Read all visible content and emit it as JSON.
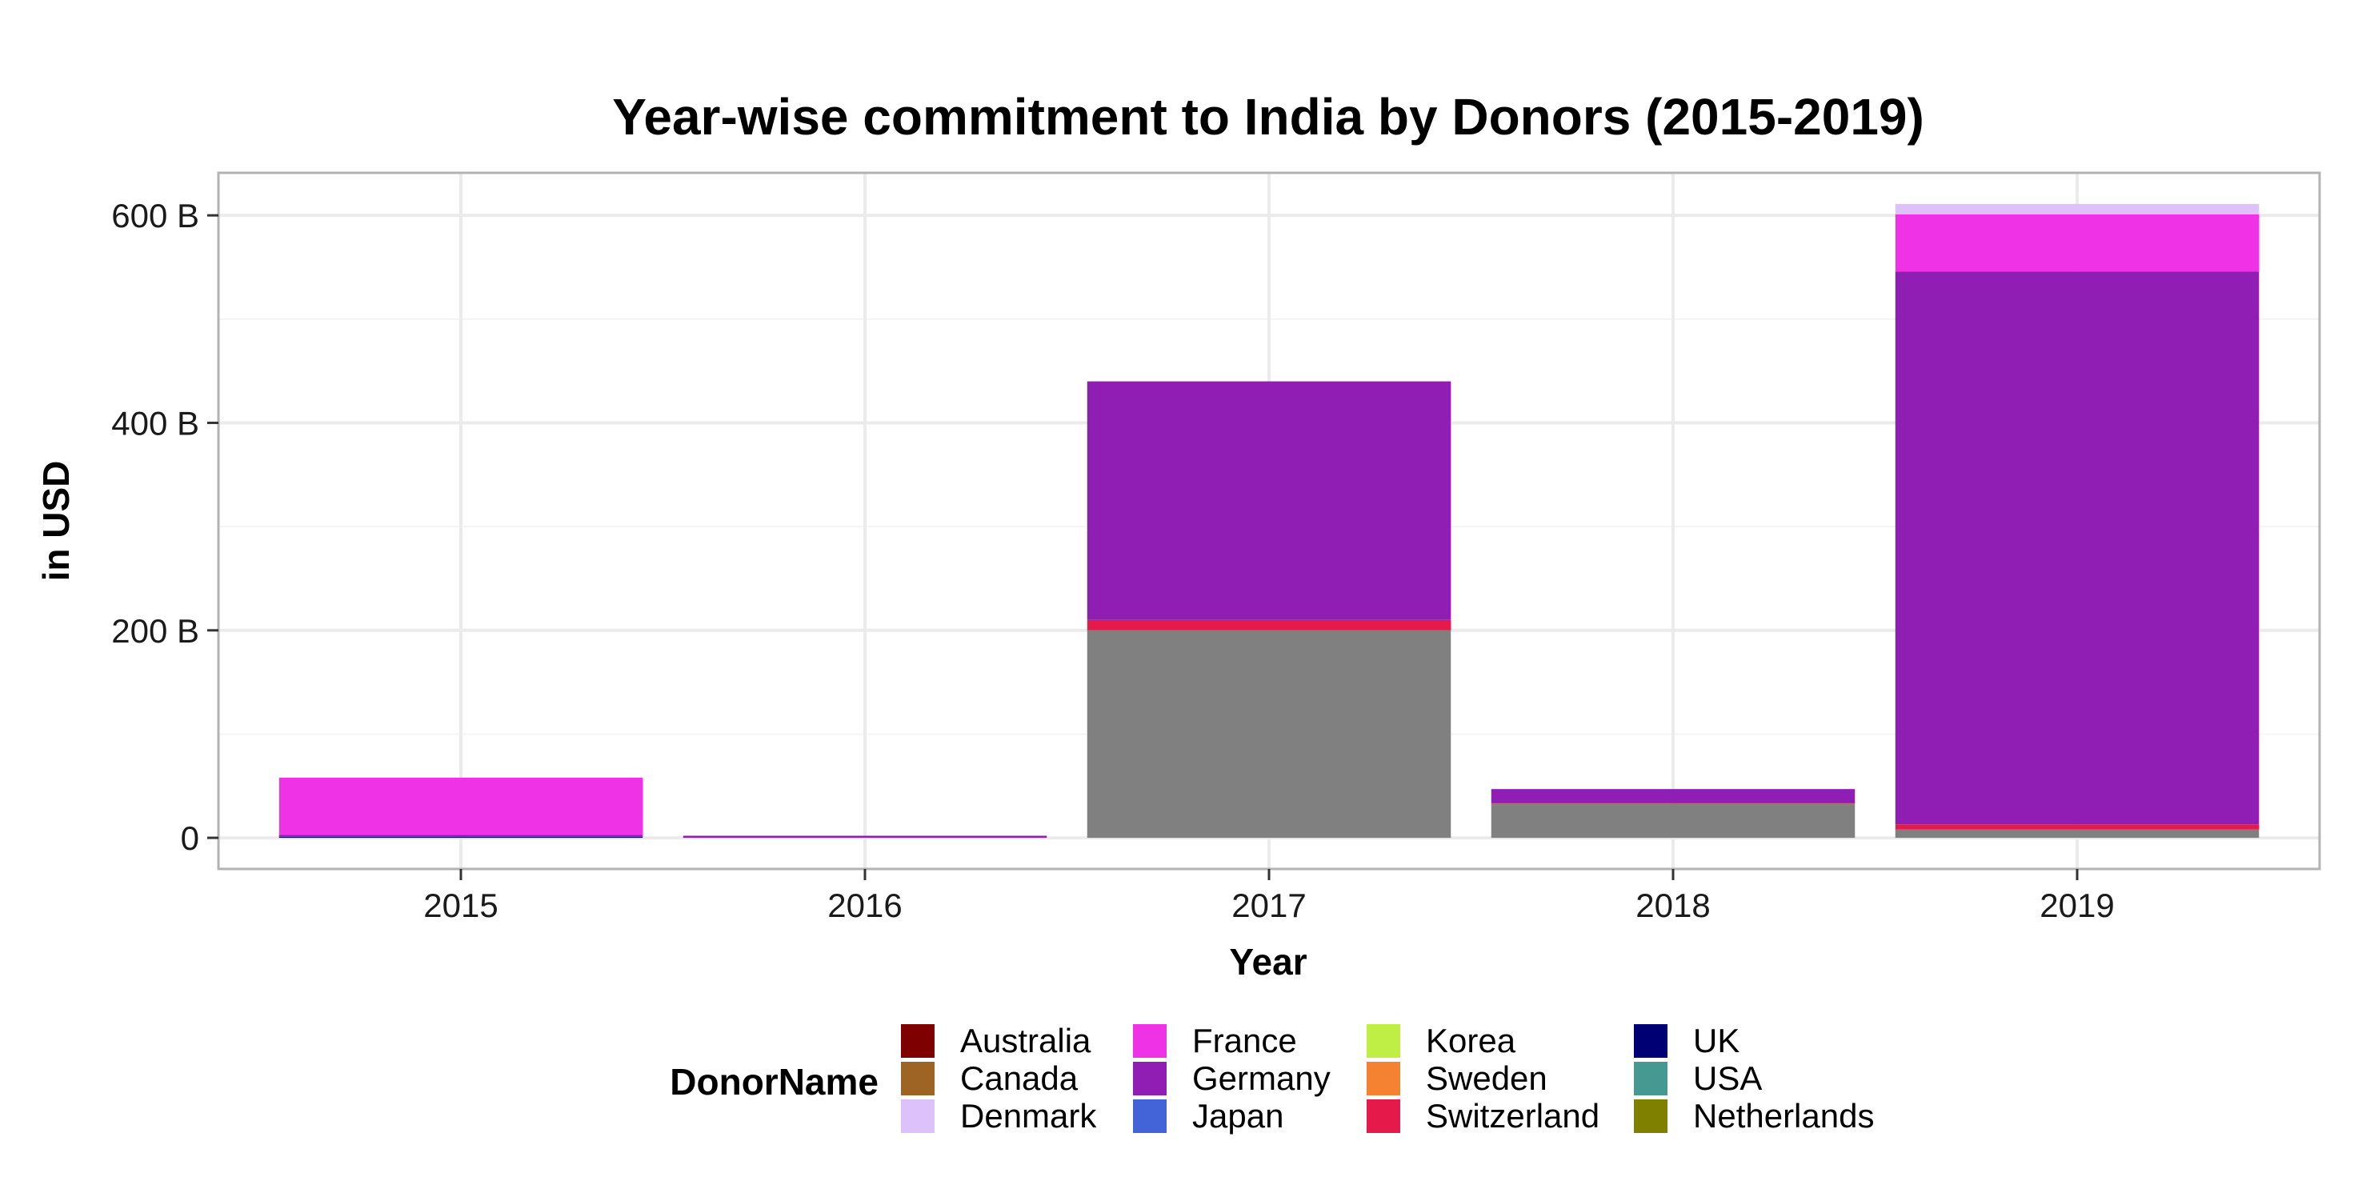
{
  "chart_data": {
    "type": "bar",
    "stacked": true,
    "title": "Year-wise commitment to India by Donors (2015-2019)",
    "xlabel": "Year",
    "ylabel": "in USD",
    "categories": [
      "2015",
      "2016",
      "2017",
      "2018",
      "2019"
    ],
    "ylim": [
      -30,
      641
    ],
    "yticks": [
      0,
      200,
      400,
      600
    ],
    "ytick_labels": [
      "0",
      "200 B",
      "400 B",
      "600 B"
    ],
    "grid": true,
    "legend": {
      "title": "DonorName",
      "position": "bottom",
      "ncol": 4
    },
    "series": [
      {
        "name": "Australia",
        "color": "#7f0000",
        "values": [
          0,
          0,
          0,
          0,
          0
        ]
      },
      {
        "name": "Canada",
        "color": "#9e6424",
        "values": [
          0,
          0,
          0,
          0,
          0
        ]
      },
      {
        "name": "Denmark",
        "color": "#dcc1fb",
        "values": [
          0,
          0,
          0,
          0,
          10
        ]
      },
      {
        "name": "France",
        "color": "#f032e6",
        "values": [
          55,
          0,
          0,
          0,
          55
        ]
      },
      {
        "name": "Germany",
        "color": "#911eb4",
        "values": [
          2,
          2,
          230,
          13,
          533
        ]
      },
      {
        "name": "Japan",
        "color": "#4363d8",
        "values": [
          0,
          0,
          0,
          0,
          0
        ]
      },
      {
        "name": "Korea",
        "color": "#bfef45",
        "values": [
          0,
          0,
          0,
          0,
          0
        ]
      },
      {
        "name": "Sweden",
        "color": "#f58231",
        "values": [
          0,
          0,
          0,
          0,
          0
        ]
      },
      {
        "name": "Switzerland",
        "color": "#e6194b",
        "values": [
          0,
          0,
          10,
          1,
          5
        ]
      },
      {
        "name": "UK",
        "color": "#000075",
        "values": [
          1,
          0,
          0,
          0,
          0
        ]
      },
      {
        "name": "USA",
        "color": "#469990",
        "values": [
          0,
          0,
          0,
          0,
          0
        ]
      },
      {
        "name": "Netherlands",
        "color": "#808000",
        "values": [
          0,
          0,
          0,
          0,
          0
        ]
      },
      {
        "name": "",
        "color": "#808080",
        "values": [
          0,
          0,
          200,
          33,
          8
        ]
      }
    ],
    "stack_order_bottom_to_top": [
      "",
      "UK",
      "Switzerland",
      "Germany",
      "France",
      "Denmark",
      "Australia",
      "Canada",
      "Japan",
      "Korea",
      "Sweden",
      "USA",
      "Netherlands"
    ]
  }
}
